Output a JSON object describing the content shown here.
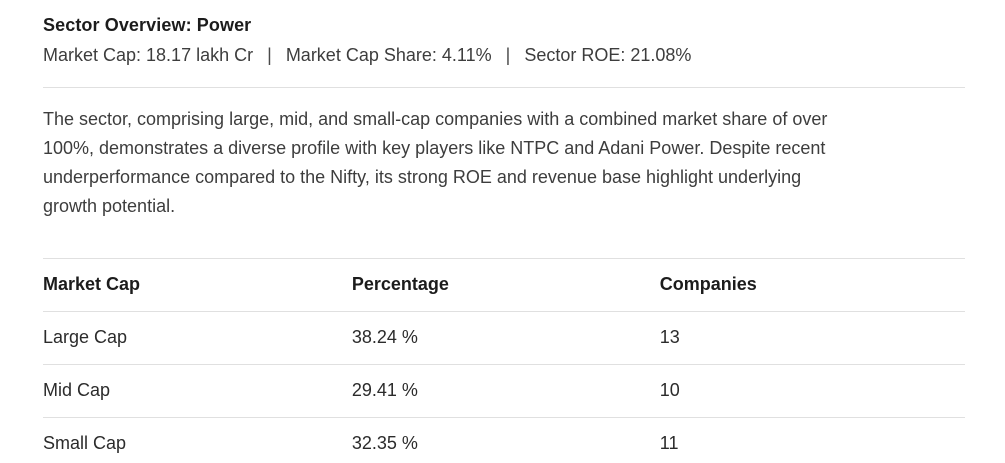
{
  "header": {
    "title": "Sector Overview: Power",
    "separator": "|",
    "meta_items": [
      "Market Cap: 18.17 lakh Cr",
      "Market Cap Share: 4.11%",
      "Sector ROE: 21.08%"
    ]
  },
  "description": "The sector, comprising large, mid, and small-cap companies with a combined market share of over 100%, demonstrates a diverse profile with key players like NTPC and Adani Power. Despite recent underperformance compared to the Nifty, its strong ROE and revenue base highlight underlying growth potential.",
  "table": {
    "headers": [
      "Market Cap",
      "Percentage",
      "Companies"
    ],
    "rows": [
      [
        "Large Cap",
        "38.24 %",
        "13"
      ],
      [
        "Mid Cap",
        "29.41 %",
        "10"
      ],
      [
        "Small Cap",
        "32.35 %",
        "11"
      ]
    ]
  },
  "colors": {
    "background": "#ffffff",
    "title_text": "#1c1c1c",
    "body_text": "#3d3d3d",
    "divider": "#e0e0e0"
  }
}
